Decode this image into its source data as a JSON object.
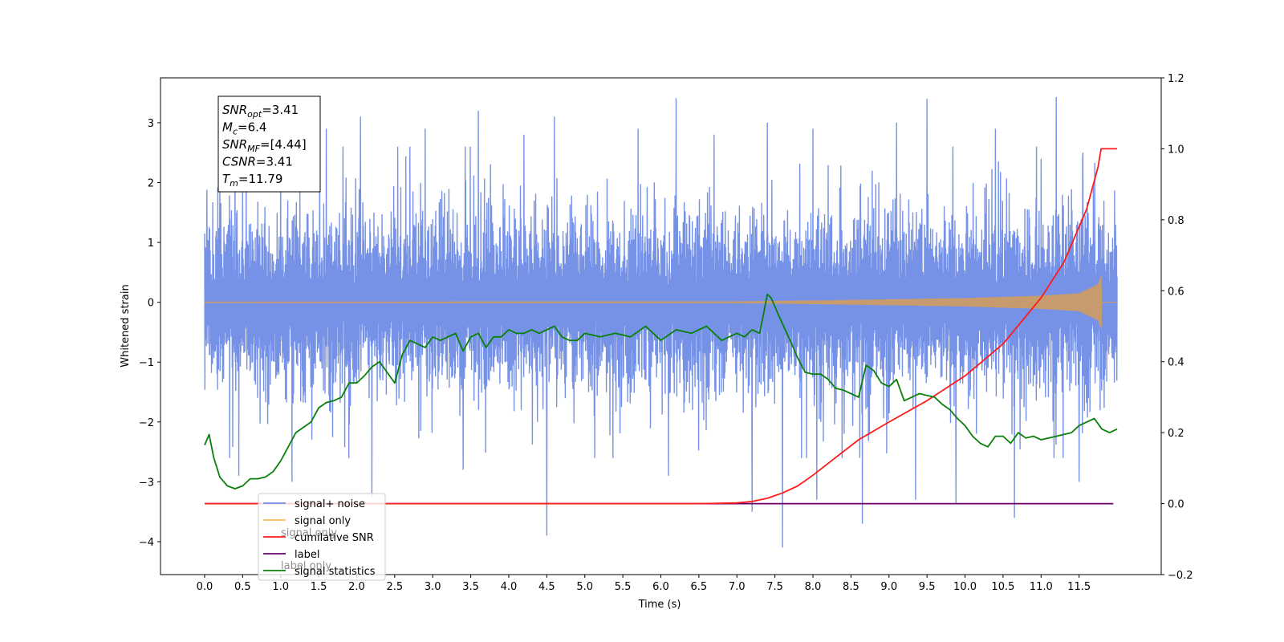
{
  "chart_data": {
    "type": "line",
    "xlabel": "Time (s)",
    "ylabel": "Whitened strain",
    "xlim": [
      -0.58,
      12.58
    ],
    "ylim": [
      -4.55,
      3.75
    ],
    "y2lim": [
      -0.2,
      1.2
    ],
    "x_ticks": [
      0.0,
      0.5,
      1.0,
      1.5,
      2.0,
      2.5,
      3.0,
      3.5,
      4.0,
      4.5,
      5.0,
      5.5,
      6.0,
      6.5,
      7.0,
      7.5,
      8.0,
      8.5,
      9.0,
      9.5,
      10.0,
      10.5,
      11.0,
      11.5
    ],
    "x_tick_labels": [
      "0.0",
      "0.5",
      "1.0",
      "1.5",
      "2.0",
      "2.5",
      "3.0",
      "3.5",
      "4.0",
      "4.5",
      "5.0",
      "5.5",
      "6.0",
      "6.5",
      "7.0",
      "7.5",
      "8.0",
      "8.5",
      "9.0",
      "9.5",
      "10.0",
      "10.5",
      "11.0",
      "11.5"
    ],
    "y_ticks": [
      -4,
      -3,
      -2,
      -1,
      0,
      1,
      2,
      3
    ],
    "y_tick_labels": [
      "−4",
      "−3",
      "−2",
      "−1",
      "0",
      "1",
      "2",
      "3"
    ],
    "y2_ticks": [
      -0.2,
      0.0,
      0.2,
      0.4,
      0.6,
      0.8,
      1.0,
      1.2
    ],
    "y2_tick_labels": [
      "−0.2",
      "0.0",
      "0.2",
      "0.4",
      "0.6",
      "0.8",
      "1.0",
      "1.2"
    ],
    "grid": false,
    "legend_position": "lower-left",
    "series": [
      {
        "name": "signal+ noise",
        "color": "#6f8ce6",
        "axis": "left",
        "style": "noise band",
        "x_range": [
          0.0,
          12.0
        ],
        "envelope_upper_typical": 1.5,
        "envelope_lower_typical": -1.5,
        "spike_peaks": [
          [
            0.03,
            1.88
          ],
          [
            0.2,
            2.4
          ],
          [
            0.4,
            2.8
          ],
          [
            1.0,
            2.6
          ],
          [
            1.6,
            2.9
          ],
          [
            2.05,
            3.1
          ],
          [
            2.9,
            2.9
          ],
          [
            3.6,
            3.2
          ],
          [
            4.2,
            2.8
          ],
          [
            4.6,
            3.1
          ],
          [
            5.7,
            2.9
          ],
          [
            6.2,
            3.41
          ],
          [
            6.7,
            2.8
          ],
          [
            7.4,
            3.0
          ],
          [
            8.0,
            2.9
          ],
          [
            9.1,
            3.0
          ],
          [
            9.5,
            3.4
          ],
          [
            10.4,
            2.9
          ],
          [
            11.0,
            2.4
          ],
          [
            11.2,
            3.43
          ],
          [
            11.55,
            2.5
          ]
        ],
        "spike_troughs": [
          [
            0.45,
            -2.9
          ],
          [
            1.15,
            -3.0
          ],
          [
            2.2,
            -3.25
          ],
          [
            3.4,
            -2.8
          ],
          [
            4.5,
            -3.9
          ],
          [
            6.1,
            -2.9
          ],
          [
            7.2,
            -3.5
          ],
          [
            7.6,
            -4.1
          ],
          [
            8.05,
            -3.3
          ],
          [
            8.65,
            -3.7
          ],
          [
            9.35,
            -3.3
          ],
          [
            9.88,
            -3.35
          ],
          [
            10.65,
            -3.6
          ],
          [
            11.5,
            -3.0
          ]
        ]
      },
      {
        "name": "signal only",
        "color": "#c79b6e",
        "axis": "left",
        "style": "chirp",
        "x": [
          0.0,
          7.0,
          8.0,
          9.0,
          10.0,
          10.5,
          11.0,
          11.5,
          11.75,
          11.79,
          11.8
        ],
        "amplitude": [
          0.01,
          0.015,
          0.03,
          0.05,
          0.07,
          0.09,
          0.11,
          0.15,
          0.3,
          0.45,
          0.0
        ]
      },
      {
        "name": "cumilative SNR",
        "color": "#ff1a1a",
        "axis": "right",
        "x": [
          0.0,
          6.5,
          7.0,
          7.2,
          7.4,
          7.6,
          7.8,
          8.0,
          8.3,
          8.6,
          9.0,
          9.5,
          10.0,
          10.5,
          11.0,
          11.3,
          11.6,
          11.75,
          11.79,
          12.0
        ],
        "values": [
          0.0,
          0.0,
          0.002,
          0.006,
          0.015,
          0.03,
          0.05,
          0.08,
          0.13,
          0.18,
          0.23,
          0.29,
          0.36,
          0.45,
          0.58,
          0.68,
          0.83,
          0.95,
          1.0,
          1.0
        ]
      },
      {
        "name": "label",
        "color": "#6b006b",
        "axis": "right",
        "x": [
          0.0,
          11.95
        ],
        "values": [
          0.0,
          0.0
        ]
      },
      {
        "name": "signal statistics",
        "color": "#0a7f0a",
        "axis": "right",
        "x": [
          0.0,
          0.06,
          0.12,
          0.2,
          0.3,
          0.4,
          0.5,
          0.6,
          0.7,
          0.8,
          0.9,
          1.0,
          1.1,
          1.2,
          1.3,
          1.4,
          1.5,
          1.6,
          1.7,
          1.8,
          1.9,
          2.0,
          2.1,
          2.2,
          2.3,
          2.4,
          2.5,
          2.6,
          2.7,
          2.8,
          2.9,
          3.0,
          3.1,
          3.2,
          3.3,
          3.4,
          3.5,
          3.6,
          3.7,
          3.8,
          3.9,
          4.0,
          4.1,
          4.2,
          4.3,
          4.4,
          4.5,
          4.6,
          4.7,
          4.8,
          4.9,
          5.0,
          5.2,
          5.4,
          5.6,
          5.8,
          6.0,
          6.2,
          6.4,
          6.6,
          6.8,
          7.0,
          7.1,
          7.2,
          7.3,
          7.4,
          7.45,
          7.55,
          7.7,
          7.8,
          7.9,
          8.0,
          8.1,
          8.2,
          8.3,
          8.4,
          8.5,
          8.6,
          8.7,
          8.8,
          8.9,
          9.0,
          9.1,
          9.2,
          9.3,
          9.4,
          9.5,
          9.6,
          9.7,
          9.8,
          9.9,
          10.0,
          10.1,
          10.2,
          10.3,
          10.4,
          10.5,
          10.6,
          10.7,
          10.8,
          10.9,
          11.0,
          11.2,
          11.4,
          11.5,
          11.6,
          11.7,
          11.8,
          11.9,
          12.0
        ],
        "values": [
          0.165,
          0.195,
          0.13,
          0.075,
          0.05,
          0.042,
          0.05,
          0.07,
          0.07,
          0.075,
          0.09,
          0.12,
          0.16,
          0.2,
          0.215,
          0.23,
          0.27,
          0.285,
          0.29,
          0.3,
          0.34,
          0.34,
          0.36,
          0.385,
          0.4,
          0.37,
          0.34,
          0.42,
          0.46,
          0.45,
          0.44,
          0.47,
          0.46,
          0.47,
          0.48,
          0.43,
          0.47,
          0.48,
          0.44,
          0.47,
          0.47,
          0.49,
          0.48,
          0.48,
          0.49,
          0.48,
          0.49,
          0.5,
          0.47,
          0.46,
          0.46,
          0.48,
          0.47,
          0.48,
          0.47,
          0.5,
          0.46,
          0.49,
          0.48,
          0.5,
          0.46,
          0.48,
          0.47,
          0.49,
          0.48,
          0.59,
          0.58,
          0.53,
          0.46,
          0.41,
          0.37,
          0.365,
          0.365,
          0.35,
          0.325,
          0.32,
          0.31,
          0.3,
          0.39,
          0.375,
          0.34,
          0.33,
          0.35,
          0.29,
          0.3,
          0.31,
          0.305,
          0.3,
          0.28,
          0.265,
          0.24,
          0.22,
          0.19,
          0.17,
          0.16,
          0.19,
          0.19,
          0.17,
          0.2,
          0.185,
          0.19,
          0.18,
          0.19,
          0.2,
          0.22,
          0.23,
          0.24,
          0.21,
          0.2,
          0.21
        ]
      }
    ],
    "annotation_lines": [
      {
        "prefix": "SNR",
        "sub": "opt",
        "suffix": "=3.41"
      },
      {
        "prefix": "M",
        "sub": "c",
        "suffix": "=6.4"
      },
      {
        "prefix": "SNR",
        "sub": "MF",
        "suffix": "=[4.44]"
      },
      {
        "prefix": "CSNR",
        "sub": "",
        "suffix": "=3.41"
      },
      {
        "prefix": "T",
        "sub": "m",
        "suffix": "=11.79"
      }
    ],
    "legend_entries": [
      "signal+ noise",
      "signal only",
      "cumilative SNR",
      "label",
      "signal statistics"
    ],
    "legend_ghost_text": [
      "signal only",
      "label only"
    ]
  }
}
